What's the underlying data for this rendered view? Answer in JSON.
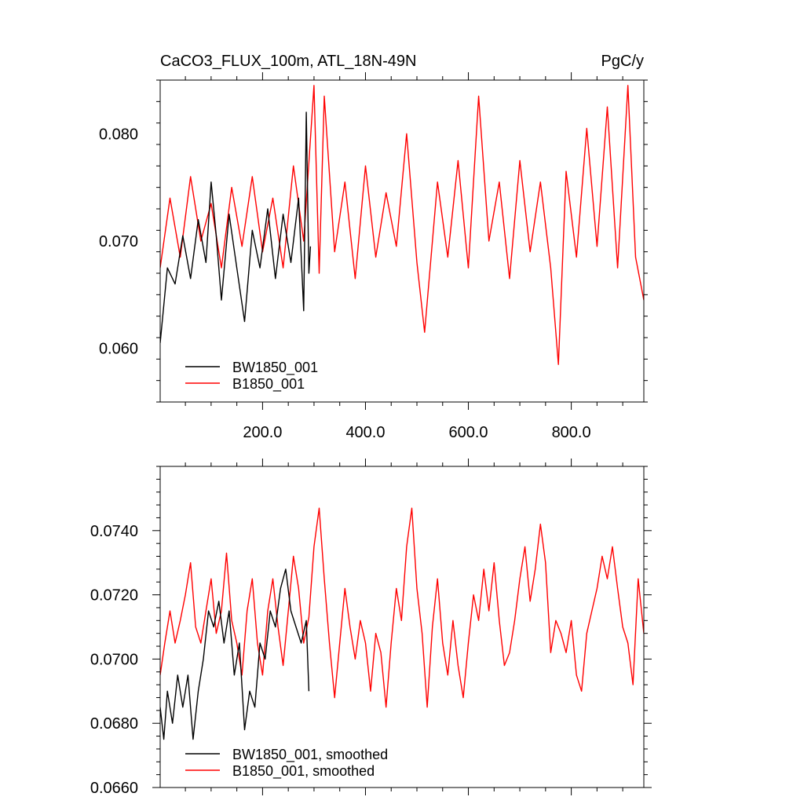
{
  "title_left": "CaCO3_FLUX_100m, ATL_18N-49N",
  "title_right": "PgC/y",
  "colors": {
    "bw": "#000000",
    "b": "#ff0000"
  },
  "chart_data": [
    {
      "type": "line",
      "xlim": [
        1,
        941
      ],
      "ylim": [
        0.055,
        0.085
      ],
      "x_ticks": [
        200,
        400,
        600,
        800
      ],
      "x_tick_labels": [
        "200.0",
        "400.0",
        "600.0",
        "800.0"
      ],
      "y_ticks": [
        0.06,
        0.07,
        0.08
      ],
      "y_tick_labels": [
        "0.060",
        "0.070",
        "0.080"
      ],
      "legend_position": "bottom-left",
      "series": [
        {
          "name": "BW1850_001",
          "color": "#000000",
          "x": [
            1,
            15,
            30,
            45,
            60,
            75,
            90,
            100,
            110,
            120,
            135,
            150,
            165,
            180,
            195,
            210,
            225,
            240,
            255,
            270,
            280,
            285,
            290,
            293
          ],
          "y": [
            0.0605,
            0.0675,
            0.066,
            0.0705,
            0.0665,
            0.072,
            0.068,
            0.0755,
            0.0705,
            0.0645,
            0.0725,
            0.0675,
            0.0625,
            0.071,
            0.0675,
            0.073,
            0.0665,
            0.0725,
            0.068,
            0.074,
            0.0635,
            0.082,
            0.067,
            0.0695
          ]
        },
        {
          "name": "B1850_001",
          "color": "#ff0000",
          "x": [
            1,
            20,
            40,
            60,
            80,
            100,
            120,
            140,
            160,
            180,
            200,
            220,
            240,
            260,
            280,
            300,
            310,
            320,
            340,
            360,
            380,
            400,
            420,
            440,
            460,
            480,
            500,
            515,
            540,
            560,
            580,
            600,
            620,
            640,
            660,
            680,
            700,
            720,
            740,
            760,
            775,
            790,
            810,
            830,
            850,
            870,
            890,
            910,
            925,
            941
          ],
          "y": [
            0.0675,
            0.074,
            0.0685,
            0.076,
            0.07,
            0.0735,
            0.0675,
            0.075,
            0.0695,
            0.076,
            0.069,
            0.074,
            0.0675,
            0.077,
            0.07,
            0.0845,
            0.067,
            0.0835,
            0.069,
            0.0755,
            0.0665,
            0.077,
            0.0685,
            0.0745,
            0.0695,
            0.08,
            0.068,
            0.0615,
            0.0755,
            0.0685,
            0.0775,
            0.0675,
            0.0835,
            0.07,
            0.0755,
            0.0665,
            0.0775,
            0.069,
            0.0755,
            0.0675,
            0.0585,
            0.0765,
            0.0685,
            0.0805,
            0.0695,
            0.0825,
            0.0675,
            0.0845,
            0.0685,
            0.0645
          ]
        }
      ]
    },
    {
      "type": "line",
      "xlim": [
        1,
        941
      ],
      "ylim": [
        0.066,
        0.076
      ],
      "x_ticks": [
        200,
        400,
        600,
        800
      ],
      "y_ticks": [
        0.066,
        0.068,
        0.07,
        0.072,
        0.074
      ],
      "y_tick_labels": [
        "0.0660",
        "0.0680",
        "0.0700",
        "0.0720",
        "0.0740"
      ],
      "legend_position": "bottom-left",
      "series": [
        {
          "name": "BW1850_001, smoothed",
          "color": "#000000",
          "x": [
            1,
            8,
            15,
            25,
            35,
            45,
            55,
            65,
            75,
            85,
            95,
            105,
            115,
            125,
            135,
            145,
            155,
            165,
            175,
            185,
            195,
            205,
            215,
            225,
            235,
            245,
            255,
            265,
            275,
            285,
            290
          ],
          "y": [
            0.0685,
            0.0675,
            0.069,
            0.068,
            0.0695,
            0.0685,
            0.0695,
            0.0675,
            0.069,
            0.07,
            0.0715,
            0.071,
            0.0718,
            0.0705,
            0.0715,
            0.0695,
            0.0705,
            0.0678,
            0.069,
            0.0685,
            0.0705,
            0.07,
            0.0715,
            0.071,
            0.0722,
            0.0728,
            0.0715,
            0.071,
            0.0705,
            0.0712,
            0.069
          ]
        },
        {
          "name": "B1850_001, smoothed",
          "color": "#ff0000",
          "x": [
            1,
            10,
            20,
            30,
            40,
            50,
            60,
            70,
            80,
            90,
            100,
            110,
            120,
            130,
            140,
            150,
            160,
            170,
            180,
            190,
            200,
            210,
            220,
            230,
            240,
            250,
            260,
            270,
            280,
            290,
            300,
            310,
            320,
            330,
            340,
            350,
            360,
            370,
            380,
            390,
            400,
            410,
            420,
            430,
            440,
            450,
            460,
            470,
            480,
            490,
            500,
            510,
            520,
            530,
            540,
            550,
            560,
            570,
            580,
            590,
            600,
            610,
            620,
            630,
            640,
            650,
            660,
            670,
            680,
            690,
            700,
            710,
            720,
            730,
            740,
            750,
            760,
            770,
            780,
            790,
            800,
            810,
            820,
            830,
            840,
            850,
            860,
            870,
            880,
            890,
            900,
            910,
            920,
            930,
            941
          ],
          "y": [
            0.0695,
            0.0705,
            0.0715,
            0.0705,
            0.0712,
            0.072,
            0.073,
            0.071,
            0.0705,
            0.0715,
            0.0725,
            0.0708,
            0.0715,
            0.0733,
            0.0712,
            0.0705,
            0.0695,
            0.0715,
            0.0725,
            0.0705,
            0.0695,
            0.0715,
            0.0725,
            0.071,
            0.0698,
            0.0715,
            0.0732,
            0.0722,
            0.0705,
            0.0713,
            0.0735,
            0.0747,
            0.0725,
            0.0705,
            0.0688,
            0.0705,
            0.0722,
            0.071,
            0.07,
            0.0712,
            0.0705,
            0.069,
            0.0708,
            0.0702,
            0.0685,
            0.0705,
            0.0722,
            0.0712,
            0.0735,
            0.0747,
            0.0722,
            0.0708,
            0.0685,
            0.071,
            0.0725,
            0.0705,
            0.0695,
            0.0712,
            0.0698,
            0.0688,
            0.0705,
            0.072,
            0.0712,
            0.0728,
            0.0715,
            0.073,
            0.0712,
            0.0698,
            0.0702,
            0.0712,
            0.0725,
            0.0735,
            0.0718,
            0.0728,
            0.0742,
            0.073,
            0.0702,
            0.0712,
            0.0708,
            0.0702,
            0.0712,
            0.0695,
            0.069,
            0.0708,
            0.0715,
            0.0722,
            0.0732,
            0.0725,
            0.0735,
            0.0722,
            0.071,
            0.0705,
            0.0692,
            0.0725,
            0.0708
          ]
        }
      ]
    }
  ]
}
